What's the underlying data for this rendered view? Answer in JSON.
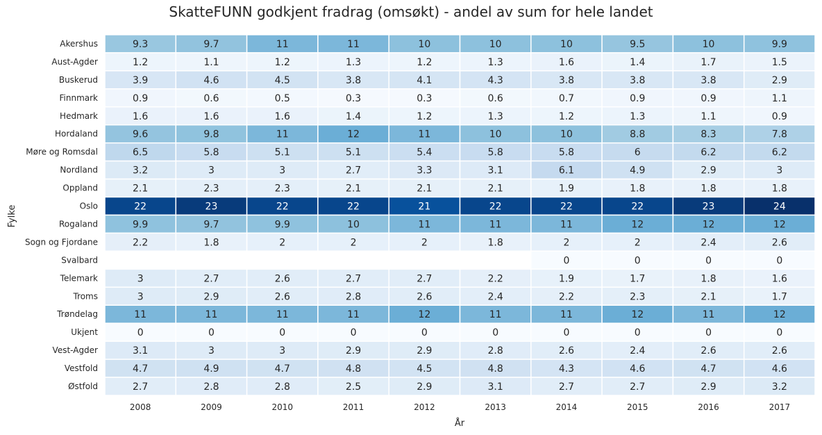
{
  "chart_data": {
    "type": "heatmap",
    "title": "SkatteFUNN godkjent fradrag (omsøkt) - andel av sum for hele landet",
    "xlabel": "År",
    "ylabel": "Fylke",
    "colormap": "Blues",
    "grid": false,
    "legend": "none",
    "x": [
      "2008",
      "2009",
      "2010",
      "2011",
      "2012",
      "2013",
      "2014",
      "2015",
      "2016",
      "2017"
    ],
    "y": [
      "Akershus",
      "Aust-Agder",
      "Buskerud",
      "Finnmark",
      "Hedmark",
      "Hordaland",
      "Møre og Romsdal",
      "Nordland",
      "Oppland",
      "Oslo",
      "Rogaland",
      "Sogn og Fjordane",
      "Svalbard",
      "Telemark",
      "Troms",
      "Trøndelag",
      "Ukjent",
      "Vest-Agder",
      "Vestfold",
      "Østfold"
    ],
    "values": [
      [
        "9.3",
        "9.7",
        "11",
        "11",
        "10",
        "10",
        "10",
        "9.5",
        "10",
        "9.9"
      ],
      [
        "1.2",
        "1.1",
        "1.2",
        "1.3",
        "1.2",
        "1.3",
        "1.6",
        "1.4",
        "1.7",
        "1.5"
      ],
      [
        "3.9",
        "4.6",
        "4.5",
        "3.8",
        "4.1",
        "4.3",
        "3.8",
        "3.8",
        "3.8",
        "2.9"
      ],
      [
        "0.9",
        "0.6",
        "0.5",
        "0.3",
        "0.3",
        "0.6",
        "0.7",
        "0.9",
        "0.9",
        "1.1"
      ],
      [
        "1.6",
        "1.6",
        "1.6",
        "1.4",
        "1.2",
        "1.3",
        "1.2",
        "1.3",
        "1.1",
        "0.9"
      ],
      [
        "9.6",
        "9.8",
        "11",
        "12",
        "11",
        "10",
        "10",
        "8.8",
        "8.3",
        "7.8"
      ],
      [
        "6.5",
        "5.8",
        "5.1",
        "5.1",
        "5.4",
        "5.8",
        "5.8",
        "6",
        "6.2",
        "6.2"
      ],
      [
        "3.2",
        "3",
        "3",
        "2.7",
        "3.3",
        "3.1",
        "6.1",
        "4.9",
        "2.9",
        "3"
      ],
      [
        "2.1",
        "2.3",
        "2.3",
        "2.1",
        "2.1",
        "2.1",
        "1.9",
        "1.8",
        "1.8",
        "1.8"
      ],
      [
        "22",
        "23",
        "22",
        "22",
        "21",
        "22",
        "22",
        "22",
        "23",
        "24"
      ],
      [
        "9.9",
        "9.7",
        "9.9",
        "10",
        "11",
        "11",
        "11",
        "12",
        "12",
        "12"
      ],
      [
        "2.2",
        "1.8",
        "2",
        "2",
        "2",
        "1.8",
        "2",
        "2",
        "2.4",
        "2.6"
      ],
      [
        null,
        null,
        null,
        null,
        null,
        null,
        "0",
        "0",
        "0",
        "0"
      ],
      [
        "3",
        "2.7",
        "2.6",
        "2.7",
        "2.7",
        "2.2",
        "1.9",
        "1.7",
        "1.8",
        "1.6"
      ],
      [
        "3",
        "2.9",
        "2.6",
        "2.8",
        "2.6",
        "2.4",
        "2.2",
        "2.3",
        "2.1",
        "1.7"
      ],
      [
        "11",
        "11",
        "11",
        "11",
        "12",
        "11",
        "11",
        "12",
        "11",
        "12"
      ],
      [
        "0",
        "0",
        "0",
        "0",
        "0",
        "0",
        "0",
        "0",
        "0",
        "0"
      ],
      [
        "3.1",
        "3",
        "3",
        "2.9",
        "2.9",
        "2.8",
        "2.6",
        "2.4",
        "2.6",
        "2.6"
      ],
      [
        "4.7",
        "4.9",
        "4.7",
        "4.8",
        "4.5",
        "4.8",
        "4.3",
        "4.6",
        "4.7",
        "4.6"
      ],
      [
        "2.7",
        "2.8",
        "2.8",
        "2.5",
        "2.9",
        "3.1",
        "2.7",
        "2.7",
        "2.9",
        "3.2"
      ]
    ]
  }
}
